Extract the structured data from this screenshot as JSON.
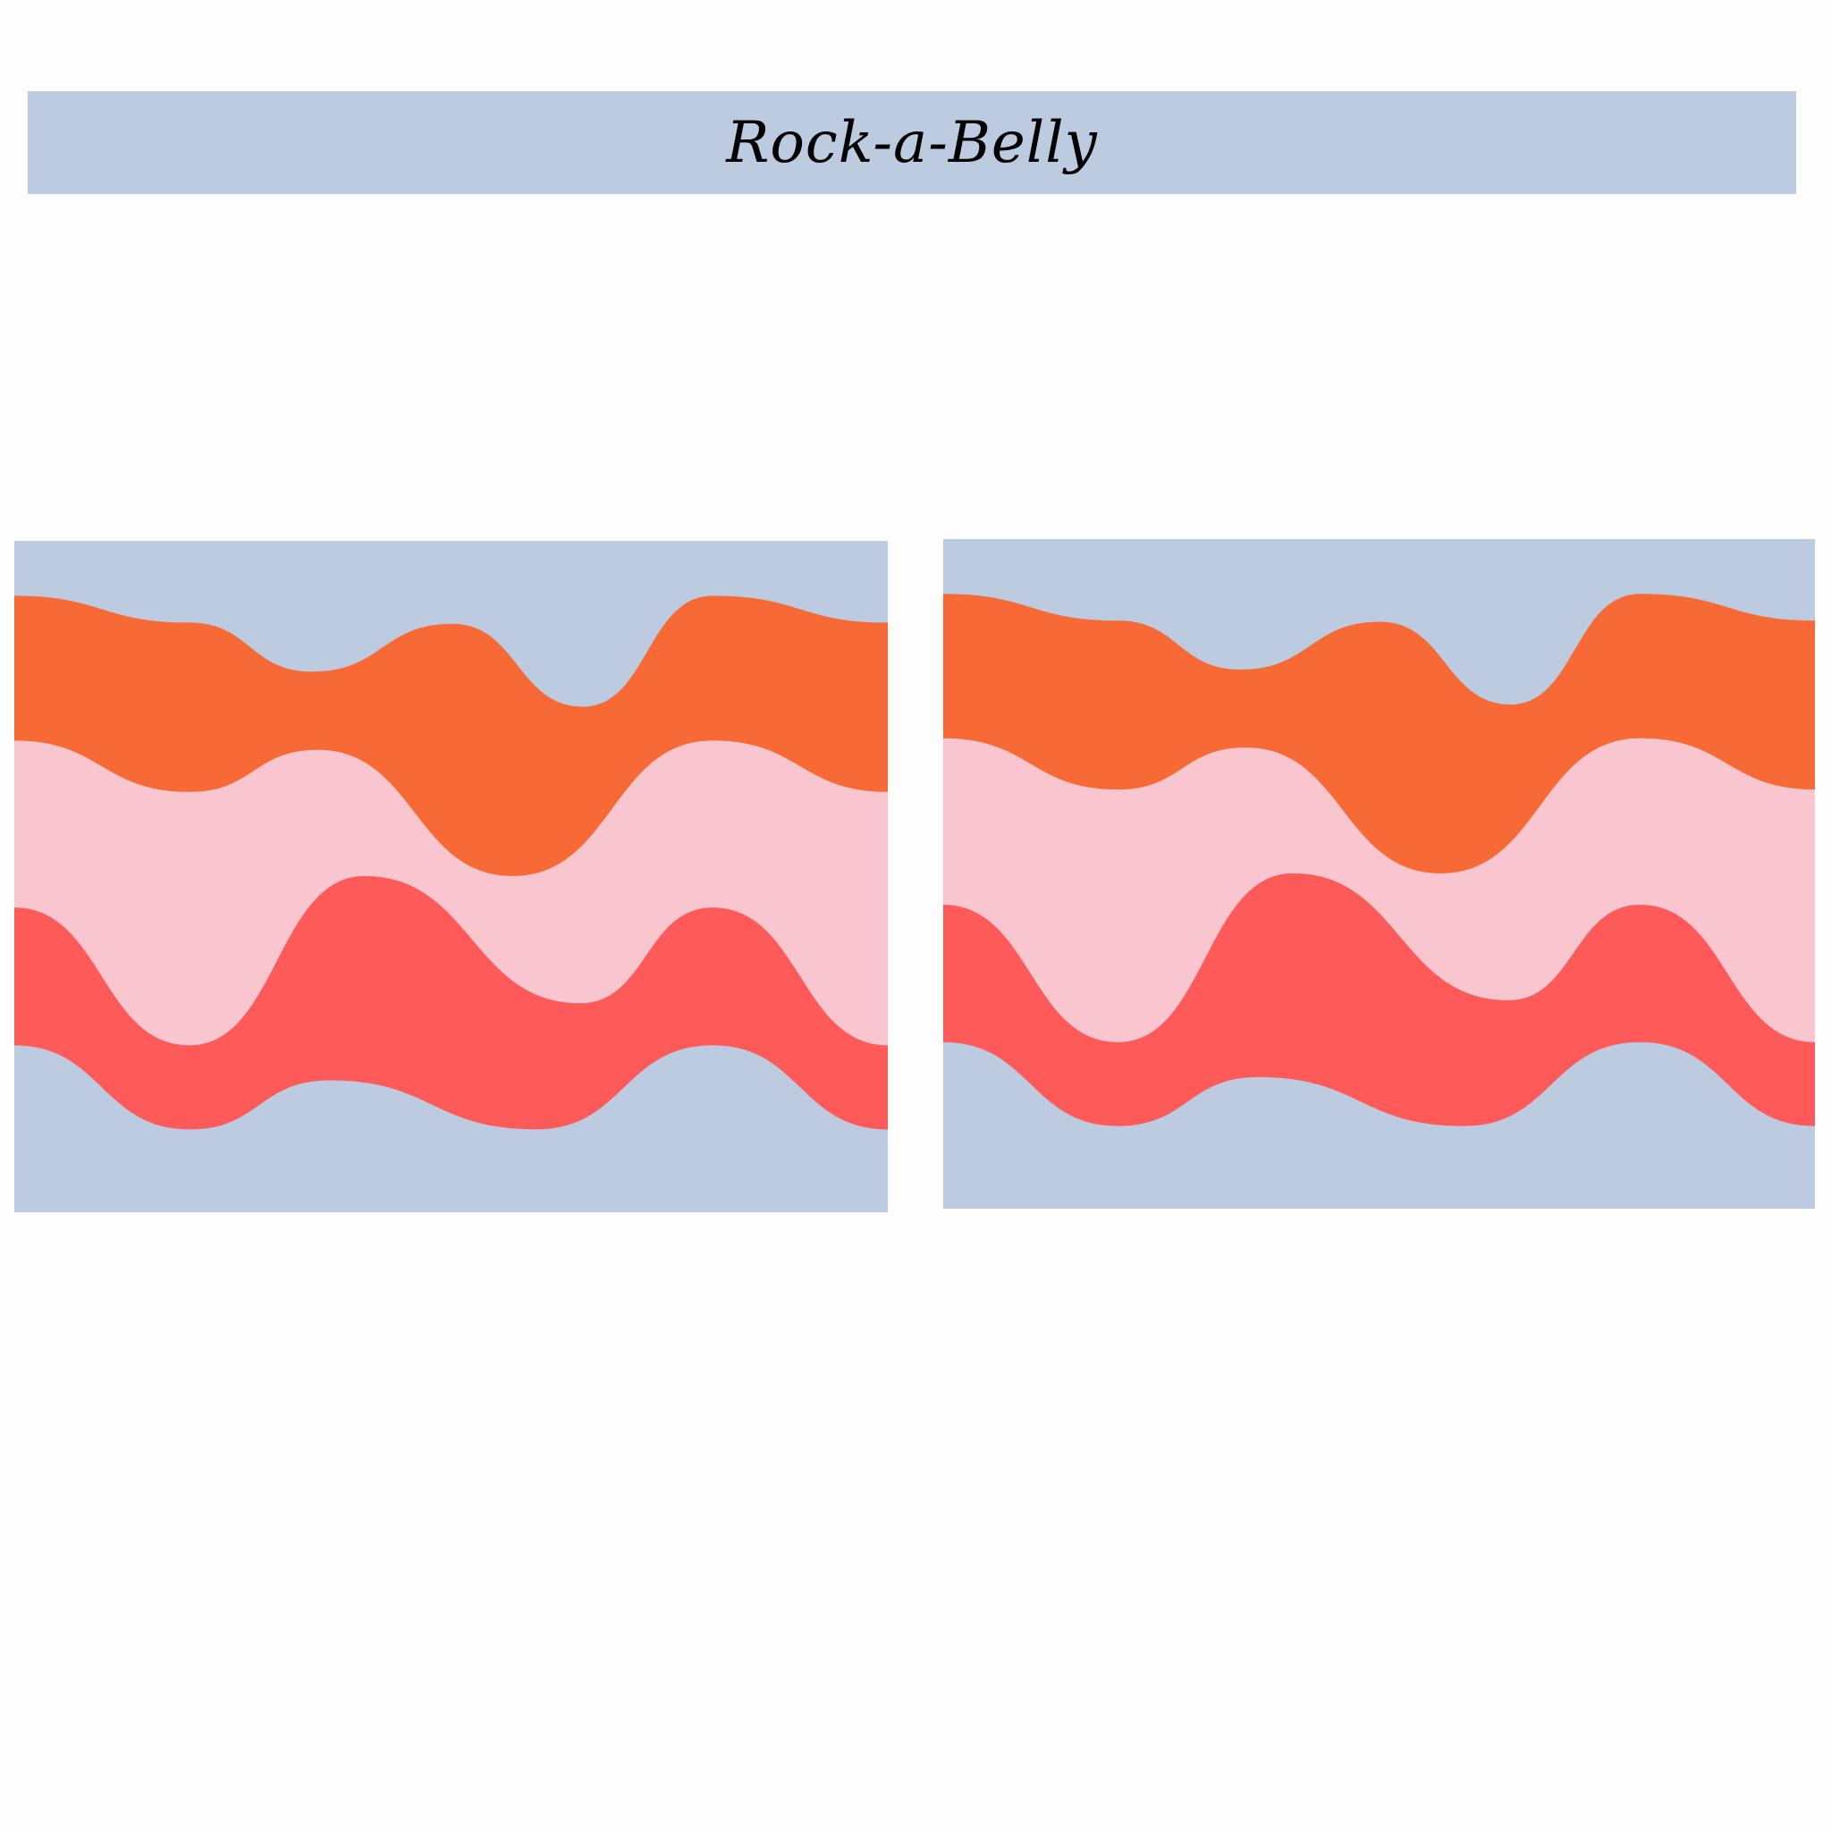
{
  "header": {
    "title": "Rock-a-Belly"
  }
}
